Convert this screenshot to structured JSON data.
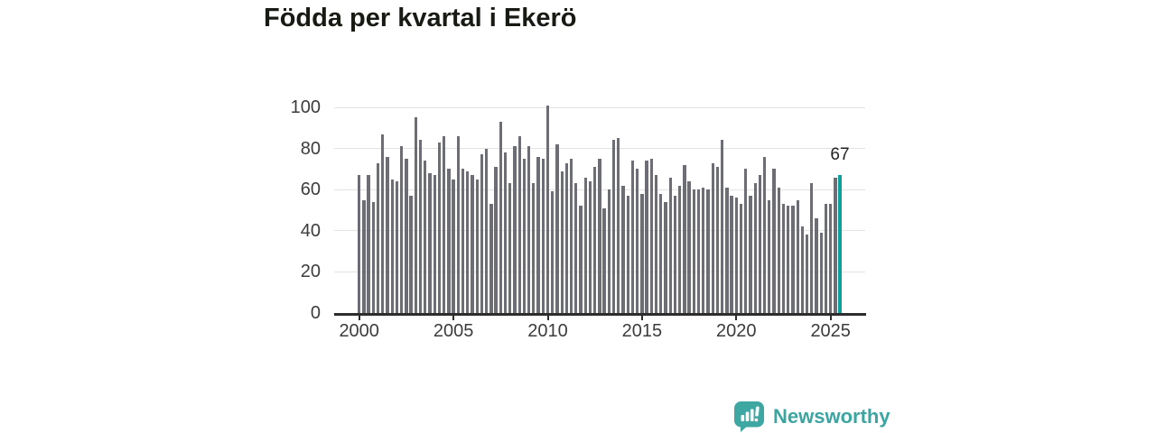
{
  "title": "Födda per kvartal i Ekerö",
  "branding": {
    "name": "Newsworthy",
    "logo": "speech-bubble-bar-chart-icon"
  },
  "colors": {
    "bar": "#6d6d76",
    "highlight": "#0ba29d",
    "brand_teal": "#3ba5a1",
    "grid": "#e3e3e3",
    "axis": "#2d2d2d",
    "tick_text": "#3c3c3c",
    "title_text": "#181a14"
  },
  "chart_data": {
    "type": "bar",
    "title": "Födda per kvartal i Ekerö",
    "xlabel": "",
    "ylabel": "",
    "ylim": [
      0,
      105
    ],
    "y_ticks": [
      0,
      20,
      40,
      60,
      80,
      100
    ],
    "x_tick_labels": [
      "2000",
      "2005",
      "2010",
      "2015",
      "2020",
      "2025"
    ],
    "grid": "horizontal-only",
    "legend": "none",
    "highlight_index": 102,
    "highlight_label": "67",
    "categories": [
      "2000 Q1",
      "2000 Q2",
      "2000 Q3",
      "2000 Q4",
      "2001 Q1",
      "2001 Q2",
      "2001 Q3",
      "2001 Q4",
      "2002 Q1",
      "2002 Q2",
      "2002 Q3",
      "2002 Q4",
      "2003 Q1",
      "2003 Q2",
      "2003 Q3",
      "2003 Q4",
      "2004 Q1",
      "2004 Q2",
      "2004 Q3",
      "2004 Q4",
      "2005 Q1",
      "2005 Q2",
      "2005 Q3",
      "2005 Q4",
      "2006 Q1",
      "2006 Q2",
      "2006 Q3",
      "2006 Q4",
      "2007 Q1",
      "2007 Q2",
      "2007 Q3",
      "2007 Q4",
      "2008 Q1",
      "2008 Q2",
      "2008 Q3",
      "2008 Q4",
      "2009 Q1",
      "2009 Q2",
      "2009 Q3",
      "2009 Q4",
      "2010 Q1",
      "2010 Q2",
      "2010 Q3",
      "2010 Q4",
      "2011 Q1",
      "2011 Q2",
      "2011 Q3",
      "2011 Q4",
      "2012 Q1",
      "2012 Q2",
      "2012 Q3",
      "2012 Q4",
      "2013 Q1",
      "2013 Q2",
      "2013 Q3",
      "2013 Q4",
      "2014 Q1",
      "2014 Q2",
      "2014 Q3",
      "2014 Q4",
      "2015 Q1",
      "2015 Q2",
      "2015 Q3",
      "2015 Q4",
      "2016 Q1",
      "2016 Q2",
      "2016 Q3",
      "2016 Q4",
      "2017 Q1",
      "2017 Q2",
      "2017 Q3",
      "2017 Q4",
      "2018 Q1",
      "2018 Q2",
      "2018 Q3",
      "2018 Q4",
      "2019 Q1",
      "2019 Q2",
      "2019 Q3",
      "2019 Q4",
      "2020 Q1",
      "2020 Q2",
      "2020 Q3",
      "2020 Q4",
      "2021 Q1",
      "2021 Q2",
      "2021 Q3",
      "2021 Q4",
      "2022 Q1",
      "2022 Q2",
      "2022 Q3",
      "2022 Q4",
      "2023 Q1",
      "2023 Q2",
      "2023 Q3",
      "2023 Q4",
      "2024 Q1",
      "2024 Q2",
      "2024 Q3",
      "2024 Q4",
      "2025 Q1",
      "2025 Q2",
      "2025 Q3"
    ],
    "values": [
      67,
      55,
      67,
      54,
      73,
      87,
      76,
      65,
      64,
      81,
      75,
      57,
      95,
      84,
      74,
      68,
      67,
      83,
      86,
      70,
      65,
      86,
      70,
      69,
      67,
      65,
      77,
      80,
      53,
      71,
      93,
      78,
      63,
      81,
      86,
      75,
      81,
      63,
      76,
      75,
      101,
      59,
      82,
      69,
      73,
      75,
      63,
      52,
      66,
      64,
      71,
      75,
      51,
      60,
      84,
      85,
      62,
      57,
      74,
      70,
      58,
      74,
      75,
      67,
      58,
      54,
      66,
      57,
      62,
      72,
      64,
      60,
      60,
      61,
      60,
      73,
      71,
      84,
      61,
      57,
      56,
      53,
      70,
      57,
      63,
      67,
      76,
      55,
      70,
      61,
      53,
      52,
      52,
      55,
      42,
      38,
      63,
      46,
      39,
      53,
      53,
      66,
      67
    ]
  }
}
